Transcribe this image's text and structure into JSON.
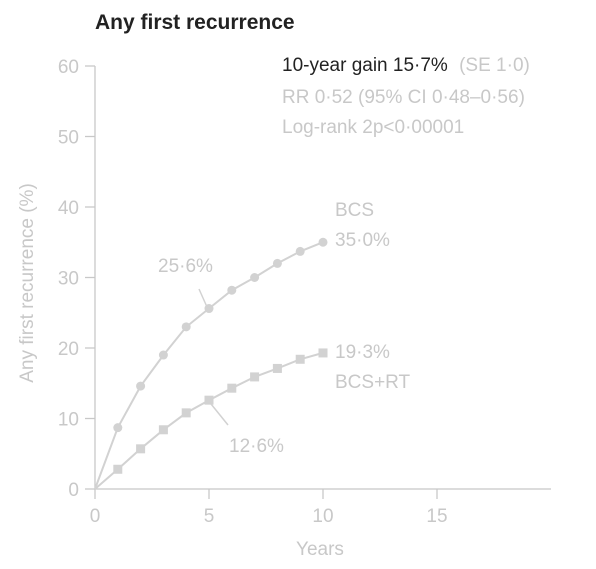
{
  "chart_data": {
    "type": "line",
    "title": "Any first recurrence",
    "xlabel": "Years",
    "ylabel": "Any first recurrence (%)",
    "xlim": [
      0,
      20
    ],
    "ylim": [
      0,
      60
    ],
    "xticks": [
      0,
      5,
      10,
      15
    ],
    "yticks": [
      0,
      10,
      20,
      30,
      40,
      50,
      60
    ],
    "stats": {
      "gain": "10-year gain 15·7%",
      "gain_se": "(SE 1·0)",
      "rr": "RR 0·52 (95% CI 0·48–0·56)",
      "logrank": "Log-rank 2p<0·00001"
    },
    "series": [
      {
        "name": "BCS",
        "marker": "circle",
        "x": [
          0,
          1,
          2,
          3,
          4,
          5,
          6,
          7,
          8,
          9,
          10
        ],
        "values": [
          0,
          8.7,
          14.6,
          19.0,
          23.0,
          25.6,
          28.2,
          30.0,
          32.0,
          33.7,
          35.0
        ],
        "end_value_label": "35·0%",
        "mid_value_label": "25·6%"
      },
      {
        "name": "BCS+RT",
        "marker": "square",
        "x": [
          0,
          1,
          2,
          3,
          4,
          5,
          6,
          7,
          8,
          9,
          10
        ],
        "values": [
          0,
          2.8,
          5.7,
          8.4,
          10.8,
          12.6,
          14.3,
          15.9,
          17.1,
          18.4,
          19.3
        ],
        "end_value_label": "19·3%",
        "mid_value_label": "12·6%"
      }
    ]
  }
}
